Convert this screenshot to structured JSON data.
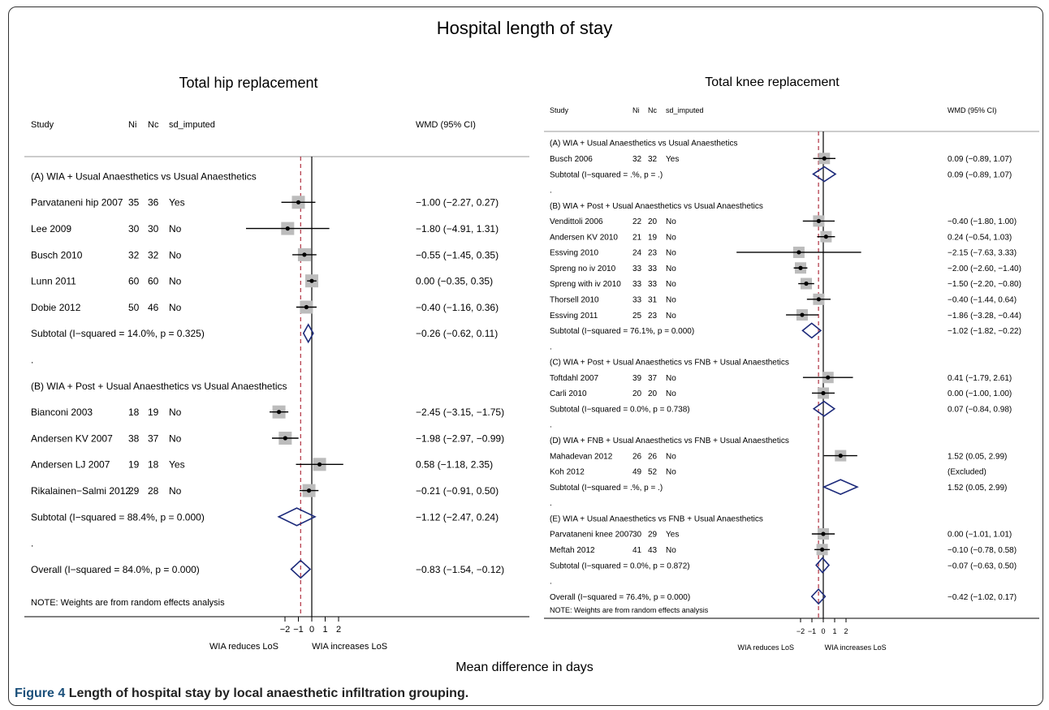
{
  "title": "Hospital length of stay",
  "x_axis_title": "Mean difference in days",
  "caption": {
    "label": "Figure 4",
    "text": "Length of hospital stay by local anaesthetic infiltration grouping."
  },
  "colors": {
    "weight_box": "#bcbcbc",
    "diamond": "#1c2a7a",
    "overall_line": "#b03040",
    "lines": "#000000"
  },
  "chart_data": [
    {
      "type": "forest",
      "title": "Total hip replacement",
      "headers": {
        "study": "Study",
        "ni": "Ni",
        "nc": "Nc",
        "sd": "sd_imputed",
        "wmd": "WMD (95% CI)"
      },
      "xticks": [
        -2,
        -1,
        0,
        1,
        2
      ],
      "xtick_labels": [
        "−2",
        "−1",
        "0",
        "1",
        "2"
      ],
      "null_value": 0,
      "overall_estimate": -0.83,
      "axis_left_label": "WIA reduces LoS",
      "axis_right_label": "WIA increases LoS",
      "note": "NOTE: Weights are from random effects analysis",
      "rows": [
        {
          "kind": "group",
          "label": "(A) WIA + Usual Anaesthetics vs Usual Anaesthetics"
        },
        {
          "kind": "study",
          "study": "Parvataneni hip 2007",
          "ni": "35",
          "nc": "36",
          "sd": "Yes",
          "est": -1.0,
          "lo": -2.27,
          "hi": 0.27,
          "ci_text": "−1.00 (−2.27, 0.27)"
        },
        {
          "kind": "study",
          "study": "Lee 2009",
          "ni": "30",
          "nc": "30",
          "sd": "No",
          "est": -1.8,
          "lo": -4.91,
          "hi": 1.31,
          "ci_text": "−1.80 (−4.91, 1.31)"
        },
        {
          "kind": "study",
          "study": "Busch 2010",
          "ni": "32",
          "nc": "32",
          "sd": "No",
          "est": -0.55,
          "lo": -1.45,
          "hi": 0.35,
          "ci_text": "−0.55 (−1.45, 0.35)"
        },
        {
          "kind": "study",
          "study": "Lunn 2011",
          "ni": "60",
          "nc": "60",
          "sd": "No",
          "est": 0.0,
          "lo": -0.35,
          "hi": 0.35,
          "ci_text": "0.00 (−0.35, 0.35)"
        },
        {
          "kind": "study",
          "study": "Dobie 2012",
          "ni": "50",
          "nc": "46",
          "sd": "No",
          "est": -0.4,
          "lo": -1.16,
          "hi": 0.36,
          "ci_text": "−0.40 (−1.16, 0.36)"
        },
        {
          "kind": "subtotal",
          "label": "Subtotal  (I−squared = 14.0%, p = 0.325)",
          "est": -0.26,
          "lo": -0.62,
          "hi": 0.11,
          "ci_text": "−0.26 (−0.62, 0.11)"
        },
        {
          "kind": "dot",
          "label": "."
        },
        {
          "kind": "group",
          "label": "(B) WIA + Post + Usual Anaesthetics vs Usual Anaesthetics"
        },
        {
          "kind": "study",
          "study": "Bianconi 2003",
          "ni": "18",
          "nc": "19",
          "sd": "No",
          "est": -2.45,
          "lo": -3.15,
          "hi": -1.75,
          "ci_text": "−2.45 (−3.15, −1.75)"
        },
        {
          "kind": "study",
          "study": "Andersen KV 2007",
          "ni": "38",
          "nc": "37",
          "sd": "No",
          "est": -1.98,
          "lo": -2.97,
          "hi": -0.99,
          "ci_text": "−1.98 (−2.97, −0.99)"
        },
        {
          "kind": "study",
          "study": "Andersen LJ 2007",
          "ni": "19",
          "nc": "18",
          "sd": "Yes",
          "est": 0.58,
          "lo": -1.18,
          "hi": 2.35,
          "ci_text": "0.58 (−1.18, 2.35)"
        },
        {
          "kind": "study",
          "study": "Rikalainen−Salmi 2012",
          "ni": "29",
          "nc": "28",
          "sd": "No",
          "est": -0.21,
          "lo": -0.91,
          "hi": 0.5,
          "ci_text": "−0.21 (−0.91, 0.50)"
        },
        {
          "kind": "subtotal",
          "label": "Subtotal  (I−squared = 88.4%, p = 0.000)",
          "est": -1.12,
          "lo": -2.47,
          "hi": 0.24,
          "ci_text": "−1.12 (−2.47, 0.24)"
        },
        {
          "kind": "dot",
          "label": "."
        },
        {
          "kind": "overall",
          "label": "Overall  (I−squared = 84.0%, p = 0.000)",
          "est": -0.83,
          "lo": -1.54,
          "hi": -0.12,
          "ci_text": "−0.83 (−1.54, −0.12)"
        }
      ]
    },
    {
      "type": "forest",
      "title": "Total knee replacement",
      "headers": {
        "study": "Study",
        "ni": "Ni",
        "nc": "Nc",
        "sd": "sd_imputed",
        "wmd": "WMD (95% CI)"
      },
      "xticks": [
        -2,
        -1,
        0,
        1,
        2
      ],
      "xtick_labels": [
        "−2",
        "−1",
        "0",
        "1",
        "2"
      ],
      "null_value": 0,
      "overall_estimate": -0.42,
      "axis_left_label": "WIA reduces LoS",
      "axis_right_label": "WIA increases LoS",
      "note": "NOTE: Weights are from random effects analysis",
      "rows": [
        {
          "kind": "group",
          "label": "(A) WIA + Usual Anaesthetics vs Usual Anaesthetics"
        },
        {
          "kind": "study",
          "study": "Busch 2006",
          "ni": "32",
          "nc": "32",
          "sd": "Yes",
          "est": 0.09,
          "lo": -0.89,
          "hi": 1.07,
          "ci_text": "0.09 (−0.89, 1.07)"
        },
        {
          "kind": "subtotal",
          "label": "Subtotal  (I−squared = .%, p = .)",
          "est": 0.09,
          "lo": -0.89,
          "hi": 1.07,
          "ci_text": "0.09 (−0.89, 1.07)"
        },
        {
          "kind": "dot",
          "label": "."
        },
        {
          "kind": "group",
          "label": "(B) WIA + Post + Usual Anaesthetics vs  Usual Anaesthetics"
        },
        {
          "kind": "study",
          "study": "Vendittoli 2006",
          "ni": "22",
          "nc": "20",
          "sd": "No",
          "est": -0.4,
          "lo": -1.8,
          "hi": 1.0,
          "ci_text": "−0.40 (−1.80, 1.00)"
        },
        {
          "kind": "study",
          "study": "Andersen KV 2010",
          "ni": "21",
          "nc": "19",
          "sd": "No",
          "est": 0.24,
          "lo": -0.54,
          "hi": 1.03,
          "ci_text": "0.24 (−0.54, 1.03)"
        },
        {
          "kind": "study",
          "study": "Essving 2010",
          "ni": "24",
          "nc": "23",
          "sd": "No",
          "est": -2.15,
          "lo": -7.63,
          "hi": 3.33,
          "ci_text": "−2.15 (−7.63, 3.33)"
        },
        {
          "kind": "study",
          "study": "Spreng no iv 2010",
          "ni": "33",
          "nc": "33",
          "sd": "No",
          "est": -2.0,
          "lo": -2.6,
          "hi": -1.4,
          "ci_text": "−2.00 (−2.60, −1.40)"
        },
        {
          "kind": "study",
          "study": "Spreng with iv 2010",
          "ni": "33",
          "nc": "33",
          "sd": "No",
          "est": -1.5,
          "lo": -2.2,
          "hi": -0.8,
          "ci_text": "−1.50 (−2.20, −0.80)"
        },
        {
          "kind": "study",
          "study": "Thorsell 2010",
          "ni": "33",
          "nc": "31",
          "sd": "No",
          "est": -0.4,
          "lo": -1.44,
          "hi": 0.64,
          "ci_text": "−0.40 (−1.44, 0.64)"
        },
        {
          "kind": "study",
          "study": "Essving 2011",
          "ni": "25",
          "nc": "23",
          "sd": "No",
          "est": -1.86,
          "lo": -3.28,
          "hi": -0.44,
          "ci_text": "−1.86 (−3.28, −0.44)"
        },
        {
          "kind": "subtotal",
          "label": "Subtotal  (I−squared = 76.1%, p = 0.000)",
          "est": -1.02,
          "lo": -1.82,
          "hi": -0.22,
          "ci_text": "−1.02 (−1.82, −0.22)"
        },
        {
          "kind": "dot",
          "label": "."
        },
        {
          "kind": "group",
          "label": "(C) WIA + Post + Usual Anaesthetics vs  FNB + Usual Anaesthetics"
        },
        {
          "kind": "study",
          "study": "Toftdahl 2007",
          "ni": "39",
          "nc": "37",
          "sd": "No",
          "est": 0.41,
          "lo": -1.79,
          "hi": 2.61,
          "ci_text": "0.41 (−1.79, 2.61)"
        },
        {
          "kind": "study",
          "study": "Carli 2010",
          "ni": "20",
          "nc": "20",
          "sd": "No",
          "est": 0.0,
          "lo": -1.0,
          "hi": 1.0,
          "ci_text": "0.00 (−1.00, 1.00)"
        },
        {
          "kind": "subtotal",
          "label": "Subtotal  (I−squared = 0.0%, p = 0.738)",
          "est": 0.07,
          "lo": -0.84,
          "hi": 0.98,
          "ci_text": "0.07 (−0.84, 0.98)"
        },
        {
          "kind": "dot",
          "label": "."
        },
        {
          "kind": "group",
          "label": "(D) WIA + FNB + Usual Anaesthetics vs  FNB + Usual Anaesthetics"
        },
        {
          "kind": "study",
          "study": "Mahadevan 2012",
          "ni": "26",
          "nc": "26",
          "sd": "No",
          "est": 1.52,
          "lo": 0.05,
          "hi": 2.99,
          "ci_text": "1.52 (0.05, 2.99)"
        },
        {
          "kind": "study",
          "study": "Koh 2012",
          "ni": "49",
          "nc": "52",
          "sd": "No",
          "excluded": true,
          "ci_text": "(Excluded)"
        },
        {
          "kind": "subtotal",
          "label": "Subtotal  (I−squared = .%, p = .)",
          "est": 1.52,
          "lo": 0.05,
          "hi": 2.99,
          "ci_text": "1.52 (0.05, 2.99)"
        },
        {
          "kind": "dot",
          "label": "."
        },
        {
          "kind": "group",
          "label": "(E) WIA + Usual Anaesthetics vs FNB + Usual Anaesthetics"
        },
        {
          "kind": "study",
          "study": "Parvataneni knee 2007",
          "ni": "30",
          "nc": "29",
          "sd": "Yes",
          "est": 0.0,
          "lo": -1.01,
          "hi": 1.01,
          "ci_text": "0.00 (−1.01, 1.01)"
        },
        {
          "kind": "study",
          "study": "Meftah 2012",
          "ni": "41",
          "nc": "43",
          "sd": "No",
          "est": -0.1,
          "lo": -0.78,
          "hi": 0.58,
          "ci_text": "−0.10 (−0.78, 0.58)"
        },
        {
          "kind": "subtotal",
          "label": "Subtotal  (I−squared = 0.0%, p = 0.872)",
          "est": -0.07,
          "lo": -0.63,
          "hi": 0.5,
          "ci_text": "−0.07 (−0.63, 0.50)"
        },
        {
          "kind": "dot",
          "label": "."
        },
        {
          "kind": "overall",
          "label": "Overall  (I−squared = 76.4%, p = 0.000)",
          "est": -0.42,
          "lo": -1.02,
          "hi": 0.17,
          "ci_text": "−0.42 (−1.02, 0.17)"
        }
      ]
    }
  ]
}
